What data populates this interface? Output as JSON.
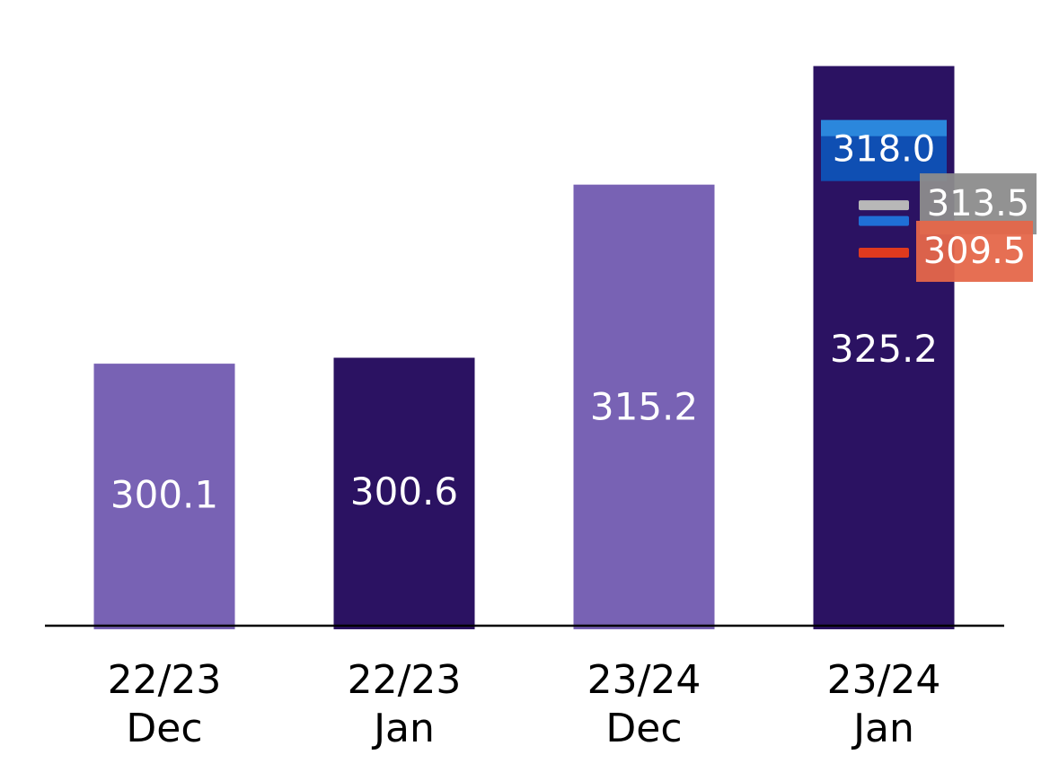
{
  "chart_data": {
    "type": "bar",
    "categories": [
      [
        "22/23",
        "Dec"
      ],
      [
        "22/23",
        "Jan"
      ],
      [
        "23/24",
        "Dec"
      ],
      [
        "23/24",
        "Jan"
      ]
    ],
    "values": [
      300.1,
      300.6,
      315.2,
      325.2
    ],
    "value_labels": [
      "300.1",
      "300.6",
      "315.2",
      "325.2"
    ],
    "bar_colors": [
      "#7862b4",
      "#2b1262",
      "#7862b4",
      "#2b1262"
    ],
    "value_label_color": "#ffffff",
    "baseline": 278.0,
    "ylim": [
      278.0,
      328.5
    ],
    "grid": false,
    "legend": "none",
    "markers": [
      {
        "category_index": 3,
        "value": 318.0,
        "label": "318.0",
        "color": "#1f6fd6",
        "label_bg": "#0f4fb3"
      },
      {
        "category_index": 3,
        "value": 313.5,
        "label": "313.5",
        "color": "#b8b8b8",
        "label_bg": "#8c8c8c"
      },
      {
        "category_index": 3,
        "value": 309.5,
        "label": "309.5",
        "color": "#e03a1e",
        "label_bg": "#e5674a"
      }
    ]
  }
}
